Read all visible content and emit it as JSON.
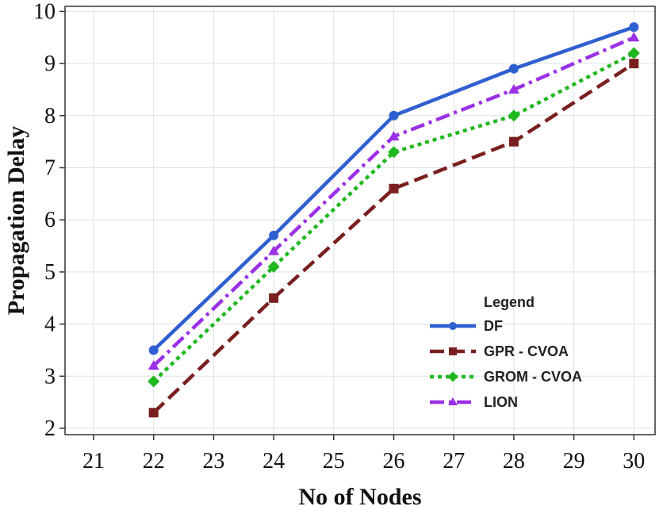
{
  "chart_data": {
    "type": "line",
    "xlabel": "No of Nodes",
    "ylabel": "Propagation Delay",
    "xlim": [
      21,
      30
    ],
    "ylim": [
      2,
      10
    ],
    "x_ticks": [
      21,
      22,
      23,
      24,
      25,
      26,
      27,
      28,
      29,
      30
    ],
    "y_ticks": [
      2,
      3,
      4,
      5,
      6,
      7,
      8,
      9,
      10
    ],
    "grid": true,
    "legend": {
      "title": "Legend",
      "placement": "bottom-right"
    },
    "x": [
      22,
      24,
      26,
      28,
      30
    ],
    "series": [
      {
        "name": "DF",
        "values": [
          3.5,
          5.7,
          8.0,
          8.9,
          9.7
        ],
        "color": "#2f5fd0",
        "marker": "circle",
        "line_style": "solid"
      },
      {
        "name": "GPR - CVOA",
        "values": [
          2.3,
          4.5,
          6.6,
          7.5,
          9.0
        ],
        "color": "#7a1f1f",
        "marker": "square",
        "line_style": "dashed"
      },
      {
        "name": "GROM - CVOA",
        "values": [
          2.9,
          5.1,
          7.3,
          8.0,
          9.2
        ],
        "color": "#1fb81f",
        "marker": "diamond",
        "line_style": "dotted"
      },
      {
        "name": "LION",
        "values": [
          3.2,
          5.4,
          7.6,
          8.5,
          9.5
        ],
        "color": "#9b30e8",
        "marker": "triangle",
        "line_style": "dash-dot"
      }
    ]
  }
}
